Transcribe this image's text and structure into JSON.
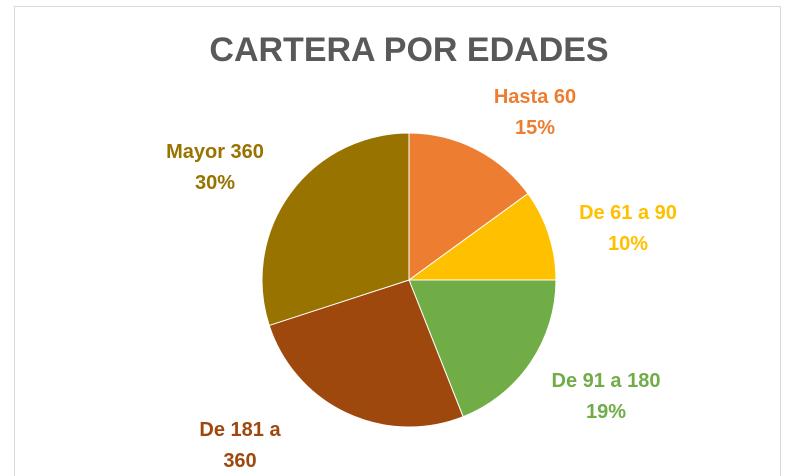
{
  "chart_data": {
    "type": "pie",
    "title": "CARTERA POR EDADES",
    "categories": [
      "Hasta 60",
      "De 61 a 90",
      "De 91 a 180",
      "De 181 a 360",
      "Mayor 360"
    ],
    "values": [
      15,
      10,
      19,
      26,
      30
    ],
    "value_labels": [
      "15%",
      "10%",
      "19%",
      null,
      "30%"
    ],
    "colors": [
      "#ED7D31",
      "#FFC000",
      "#70AD47",
      "#9E480E",
      "#997300"
    ]
  }
}
